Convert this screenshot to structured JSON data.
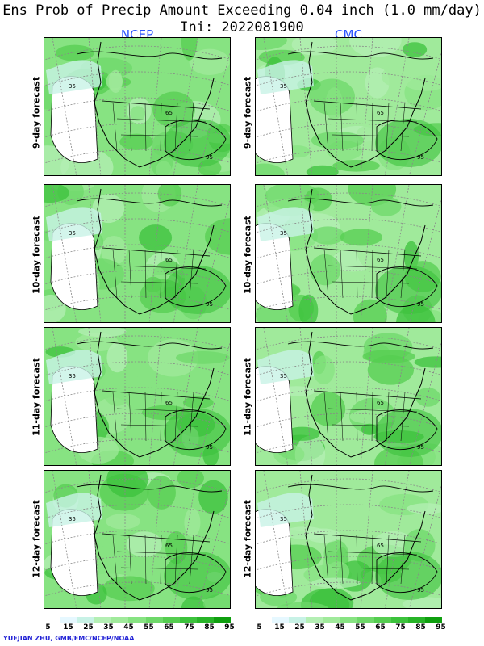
{
  "title": "Ens Prob of Precip Amount Exceeding 0.04 inch (1.0 mm/day)",
  "init_label": "Ini: 2022081900",
  "models": [
    "NCEP",
    "CMC"
  ],
  "rows": [
    "9-day forecast",
    "10-day forecast",
    "11-day forecast",
    "12-day forecast"
  ],
  "panel_contour_labels": [
    "35",
    "65",
    "95"
  ],
  "colorbar": {
    "ticks": [
      "5",
      "15",
      "25",
      "35",
      "45",
      "55",
      "65",
      "75",
      "85",
      "95"
    ],
    "colors": [
      "#ffffff",
      "#e6f8ff",
      "#c8f2e6",
      "#b4efb4",
      "#a0ea9b",
      "#87e382",
      "#6ed869",
      "#55cd50",
      "#3cc23c",
      "#28b428",
      "#0f9f0f"
    ]
  },
  "credit": "YUEJIAN ZHU, GMB/EMC/NCEP/NOAA"
}
